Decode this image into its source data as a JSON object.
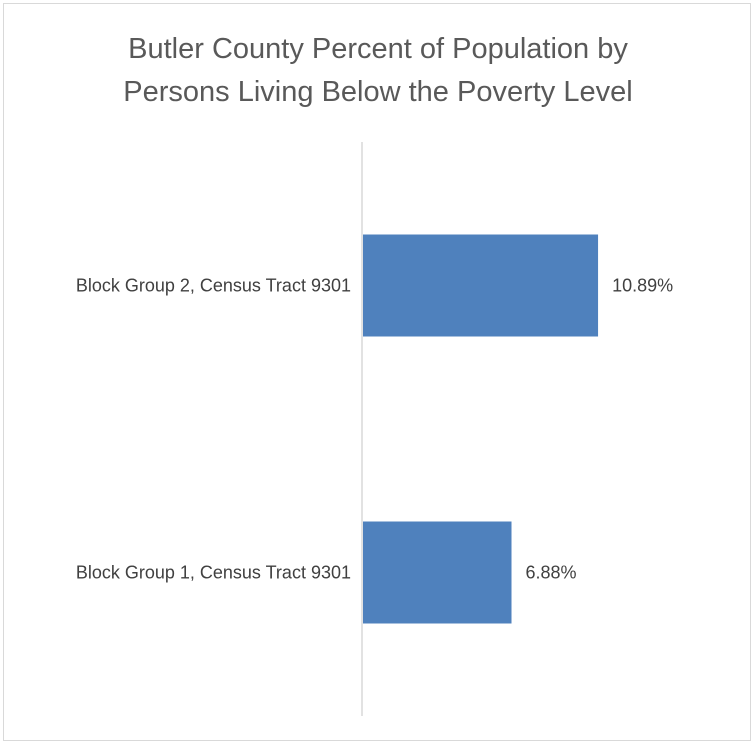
{
  "chart_data": {
    "type": "bar",
    "orientation": "horizontal",
    "title_lines": [
      "Butler County Percent of Population by",
      "Persons Living Below the Poverty Level"
    ],
    "categories": [
      "Block Group 2, Census Tract 9301",
      "Block Group 1, Census Tract 9301"
    ],
    "values": [
      10.89,
      6.88
    ],
    "data_labels": [
      "10.89%",
      "6.88%"
    ],
    "unit": "%",
    "xlim": [
      0,
      16.4
    ],
    "grid": false,
    "legend": "none",
    "colors": {
      "bar": "#4f81bd",
      "axis": "#d9d9d9",
      "text": "#404040",
      "title": "#595959",
      "border": "#d9d9d9"
    }
  }
}
